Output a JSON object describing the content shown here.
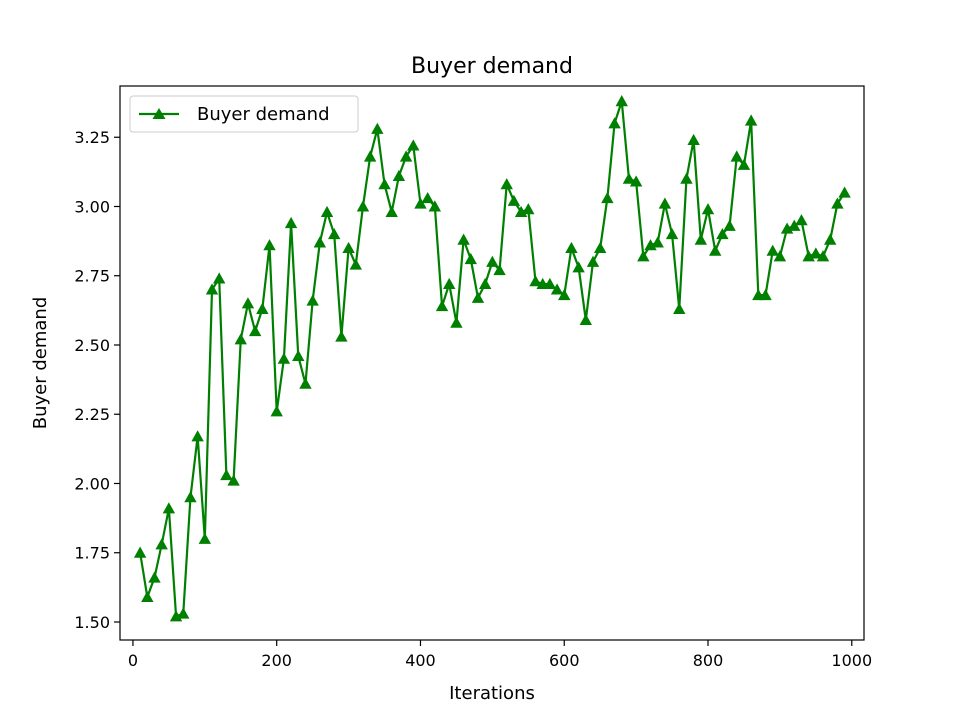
{
  "chart_data": {
    "type": "line",
    "title": "Buyer demand",
    "xlabel": "Iterations",
    "ylabel": "Buyer demand",
    "xlim": [
      -18,
      1017
    ],
    "ylim": [
      1.435,
      3.435
    ],
    "xticks": [
      0,
      200,
      400,
      600,
      800,
      1000
    ],
    "xtick_labels": [
      "0",
      "200",
      "400",
      "600",
      "800",
      "1000"
    ],
    "yticks": [
      1.5,
      1.75,
      2.0,
      2.25,
      2.5,
      2.75,
      3.0,
      3.25
    ],
    "ytick_labels": [
      "1.50",
      "1.75",
      "2.00",
      "2.25",
      "2.50",
      "2.75",
      "3.00",
      "3.25"
    ],
    "grid": false,
    "legend_position": "top-left",
    "series": [
      {
        "name": "Buyer demand",
        "color": "#008000",
        "marker": "triangle-up",
        "x": [
          10,
          20,
          30,
          40,
          50,
          60,
          70,
          80,
          90,
          100,
          110,
          120,
          130,
          140,
          150,
          160,
          170,
          180,
          190,
          200,
          210,
          220,
          230,
          240,
          250,
          260,
          270,
          280,
          290,
          300,
          310,
          320,
          330,
          340,
          350,
          360,
          370,
          380,
          390,
          400,
          410,
          420,
          430,
          440,
          450,
          460,
          470,
          480,
          490,
          500,
          510,
          520,
          530,
          540,
          550,
          560,
          570,
          580,
          590,
          600,
          610,
          620,
          630,
          640,
          650,
          660,
          670,
          680,
          690,
          700,
          710,
          720,
          730,
          740,
          750,
          760,
          770,
          780,
          790,
          800,
          810,
          820,
          830,
          840,
          850,
          860,
          870,
          880,
          890,
          900,
          910,
          920,
          930,
          940,
          950,
          960,
          970,
          980,
          990
        ],
        "y": [
          1.75,
          1.59,
          1.66,
          1.78,
          1.91,
          1.52,
          1.53,
          1.95,
          2.17,
          1.8,
          2.7,
          2.74,
          2.03,
          2.01,
          2.52,
          2.65,
          2.55,
          2.63,
          2.86,
          2.26,
          2.45,
          2.94,
          2.46,
          2.36,
          2.66,
          2.87,
          2.98,
          2.9,
          2.53,
          2.85,
          2.79,
          3.0,
          3.18,
          3.28,
          3.08,
          2.98,
          3.11,
          3.18,
          3.22,
          3.01,
          3.03,
          3.0,
          2.64,
          2.72,
          2.58,
          2.88,
          2.81,
          2.67,
          2.72,
          2.8,
          2.77,
          3.08,
          3.02,
          2.98,
          2.99,
          2.73,
          2.72,
          2.72,
          2.7,
          2.68,
          2.85,
          2.78,
          2.59,
          2.8,
          2.85,
          3.03,
          3.3,
          3.38,
          3.1,
          3.09,
          2.82,
          2.86,
          2.87,
          3.01,
          2.9,
          2.63,
          3.1,
          3.24,
          2.88,
          2.99,
          2.84,
          2.9,
          2.93,
          3.18,
          3.15,
          3.31,
          2.68,
          2.68,
          2.84,
          2.82,
          2.92,
          2.93,
          2.95,
          2.82,
          2.83,
          2.82,
          2.88,
          3.01,
          3.05
        ]
      }
    ]
  }
}
